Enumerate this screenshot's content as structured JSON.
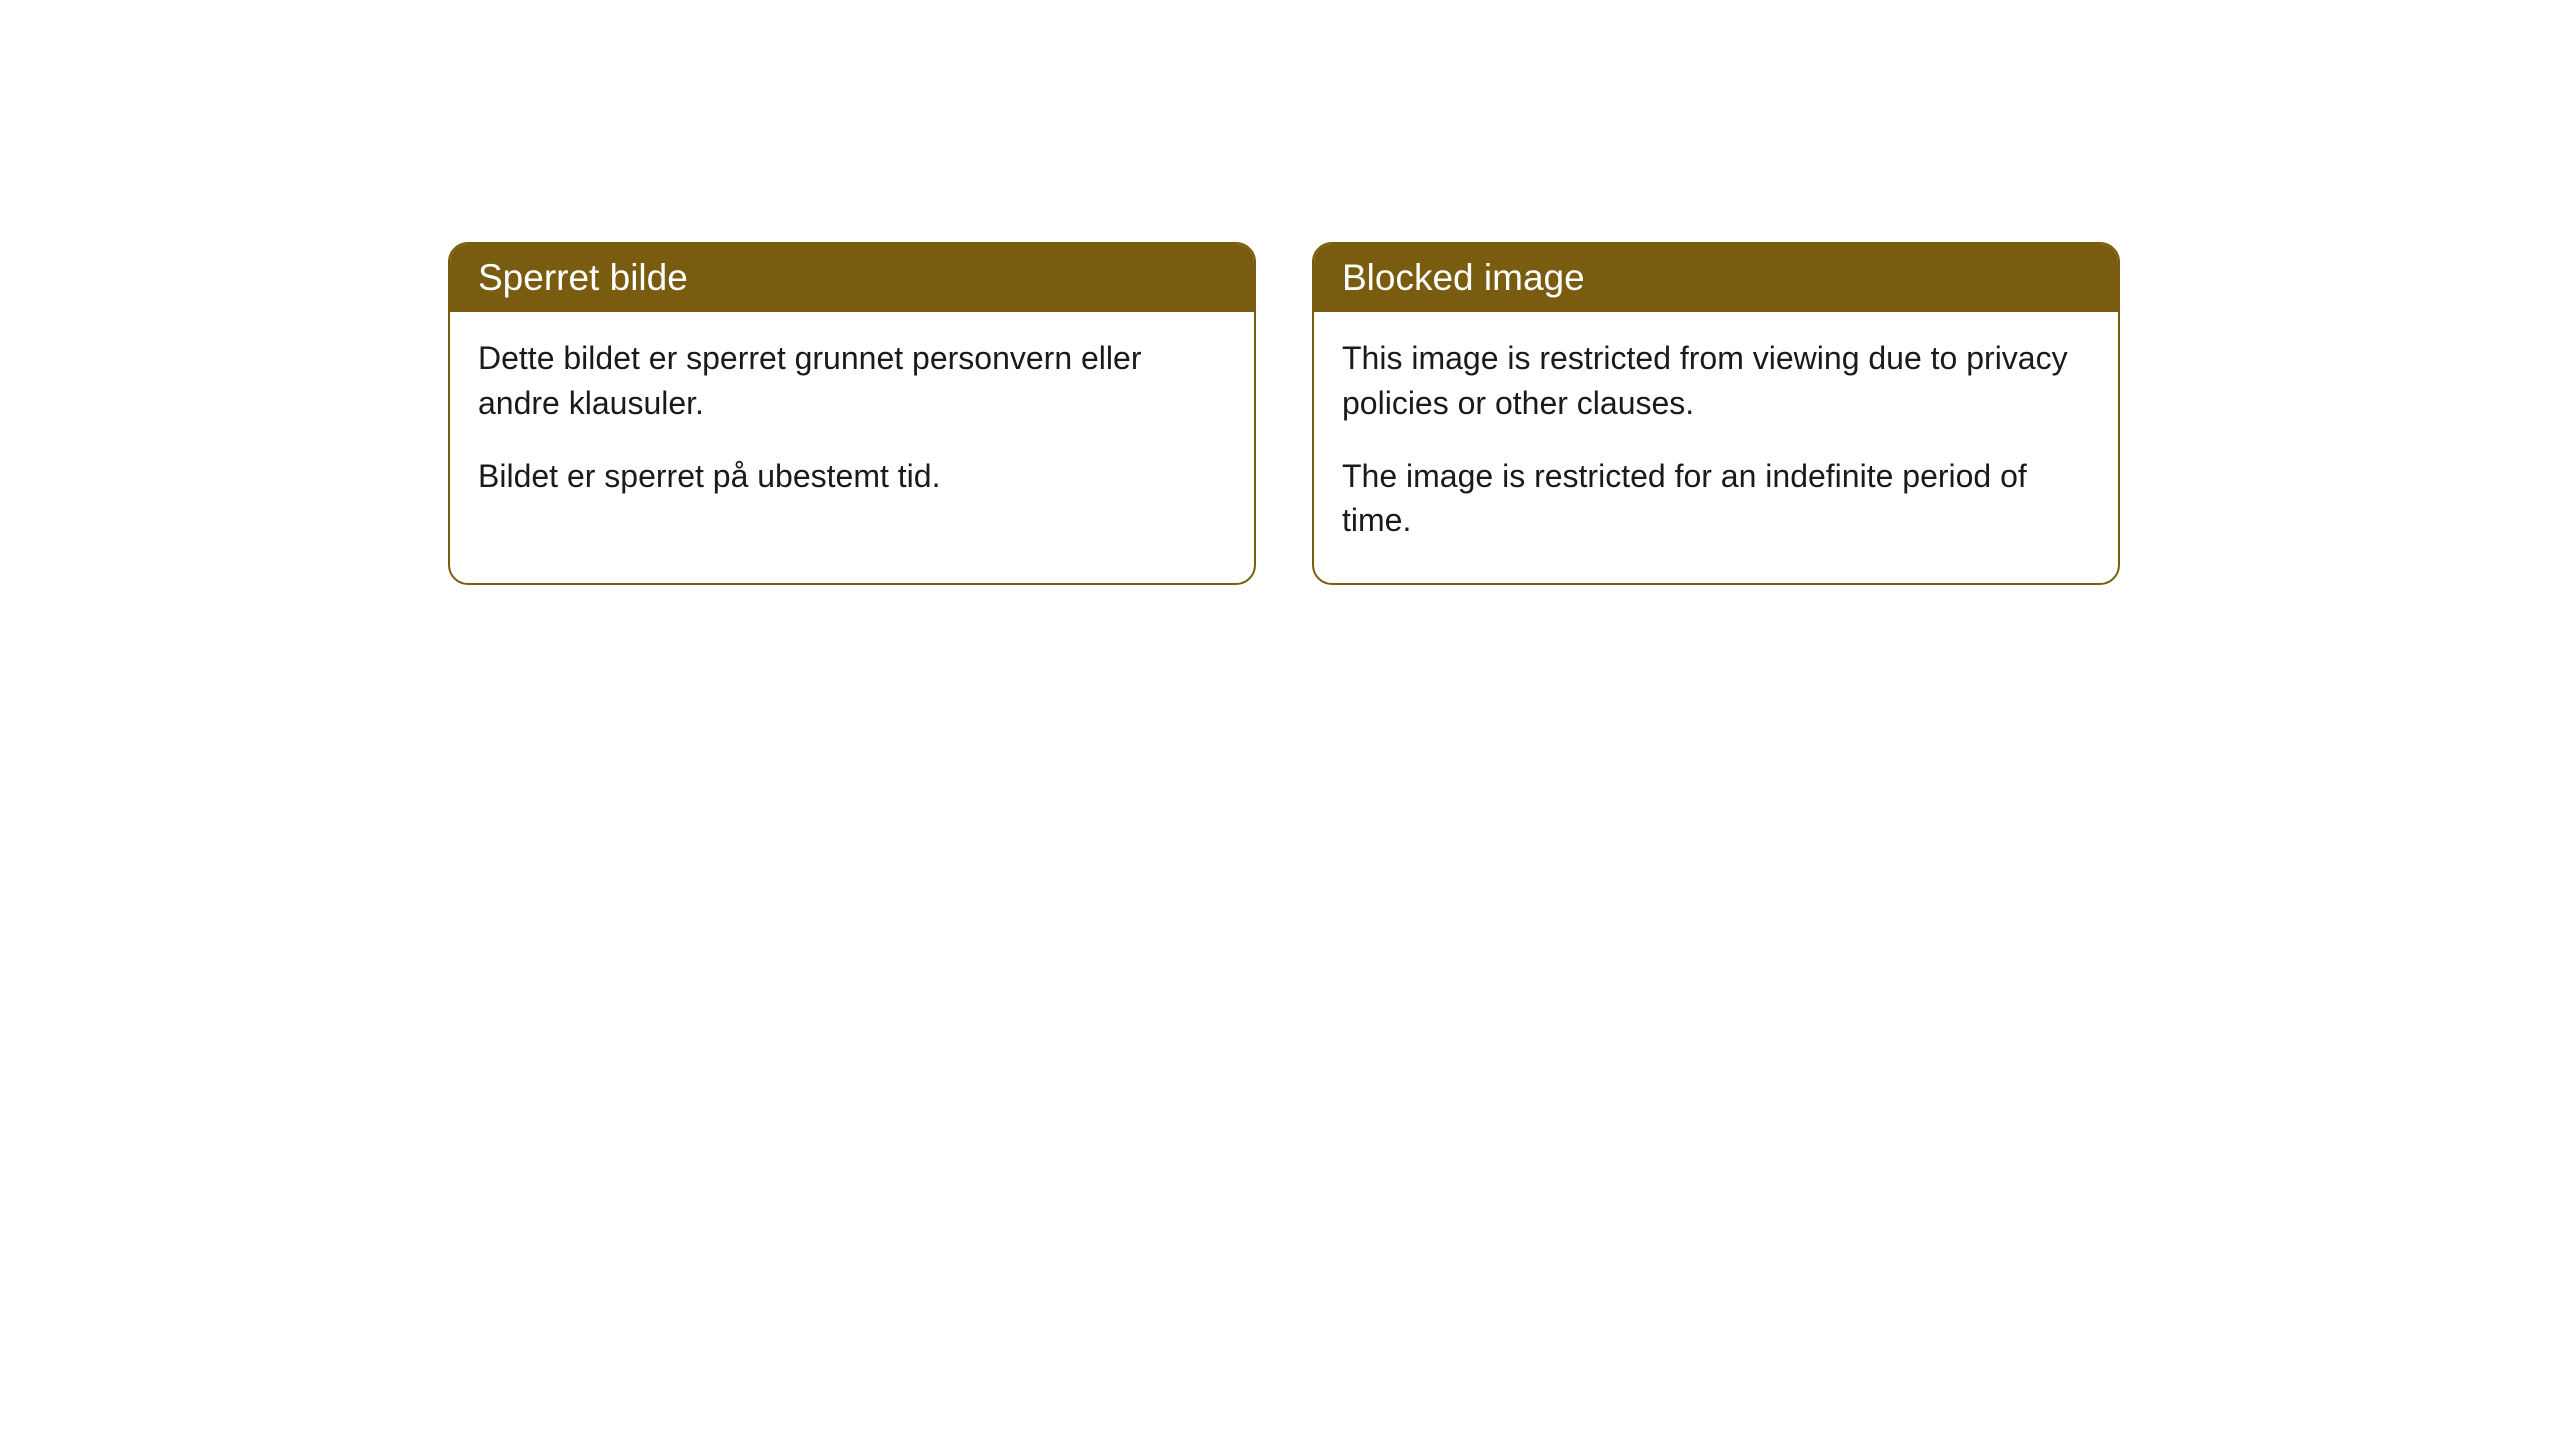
{
  "cards": [
    {
      "title": "Sperret bilde",
      "line1": "Dette bildet er sperret grunnet personvern eller andre klausuler.",
      "line2": "Bildet er sperret på ubestemt tid."
    },
    {
      "title": "Blocked image",
      "line1": "This image is restricted from viewing due to privacy policies or other clauses.",
      "line2": "The image is restricted for an indefinite period of time."
    }
  ],
  "style": {
    "header_bg": "#7a5c10",
    "header_text": "#ffffff",
    "border_color": "#7a5c10",
    "body_bg": "#ffffff",
    "body_text": "#1a1a1a",
    "border_radius": 20,
    "title_fontsize": 37,
    "body_fontsize": 32
  }
}
